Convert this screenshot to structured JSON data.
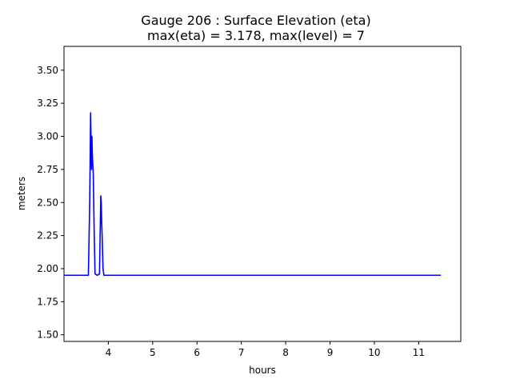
{
  "chart_data": {
    "type": "line",
    "title_line1": "Gauge 206 : Surface Elevation (eta)",
    "title_line2": "max(eta) =   3.178,    max(level) = 7",
    "xlabel": "hours",
    "ylabel": "meters",
    "xlim": [
      3.0,
      11.95
    ],
    "ylim": [
      1.45,
      3.68
    ],
    "xticks": [
      4,
      5,
      6,
      7,
      8,
      9,
      10,
      11
    ],
    "xtick_labels": [
      "4",
      "5",
      "6",
      "7",
      "8",
      "9",
      "10",
      "11"
    ],
    "yticks": [
      1.5,
      1.75,
      2.0,
      2.25,
      2.5,
      2.75,
      3.0,
      3.25,
      3.5
    ],
    "ytick_labels": [
      "1.50",
      "1.75",
      "2.00",
      "2.25",
      "2.50",
      "2.75",
      "3.00",
      "3.25",
      "3.50"
    ],
    "grid": false,
    "series": [
      {
        "color": "#0000ff",
        "x": [
          3.0,
          3.55,
          3.58,
          3.6,
          3.62,
          3.63,
          3.64,
          3.66,
          3.68,
          3.7,
          3.75,
          3.8,
          3.83,
          3.84,
          3.85,
          3.86,
          3.88,
          3.9,
          3.95,
          5,
          7,
          9,
          11.5
        ],
        "y": [
          1.95,
          1.95,
          2.5,
          3.178,
          2.75,
          3.0,
          2.85,
          2.72,
          2.3,
          1.96,
          1.95,
          1.96,
          2.55,
          2.5,
          2.35,
          2.25,
          2.0,
          1.95,
          1.95,
          1.95,
          1.95,
          1.95,
          1.95
        ]
      }
    ]
  }
}
